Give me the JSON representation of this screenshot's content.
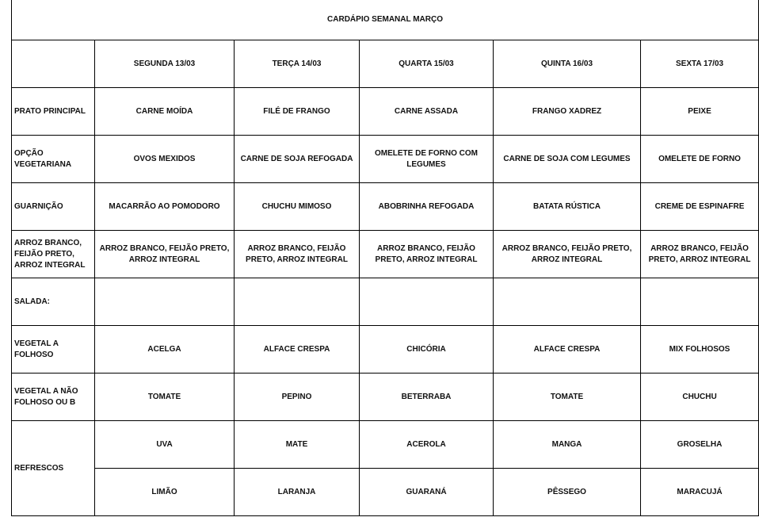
{
  "title": "CARDÁPIO SEMANAL MARÇO",
  "days": [
    "SEGUNDA 13/03",
    "TERÇA 14/03",
    "QUARTA 15/03",
    "QUINTA  16/03",
    "SEXTA 17/03"
  ],
  "rows": [
    {
      "label": "PRATO PRINCIPAL",
      "cells": [
        "CARNE MOÍDA",
        "FILÉ DE FRANGO",
        "CARNE ASSADA",
        "FRANGO XADREZ",
        "PEIXE"
      ]
    },
    {
      "label": "OPÇÃO VEGETARIANA",
      "cells": [
        "OVOS MEXIDOS",
        "CARNE DE SOJA REFOGADA",
        "OMELETE DE FORNO COM LEGUMES",
        "CARNE DE SOJA COM LEGUMES",
        "OMELETE DE FORNO"
      ]
    },
    {
      "label": "GUARNIÇÃO",
      "cells": [
        "MACARRÃO AO POMODORO",
        "CHUCHU MIMOSO",
        "ABOBRINHA REFOGADA",
        "BATATA RÚSTICA",
        "CREME DE ESPINAFRE"
      ]
    },
    {
      "label": "ARROZ BRANCO, FEIJÃO PRETO, ARROZ INTEGRAL",
      "cells": [
        "ARROZ BRANCO, FEIJÃO PRETO, ARROZ INTEGRAL",
        "ARROZ BRANCO, FEIJÃO PRETO, ARROZ INTEGRAL",
        "ARROZ BRANCO, FEIJÃO PRETO, ARROZ INTEGRAL",
        "ARROZ BRANCO, FEIJÃO PRETO, ARROZ INTEGRAL",
        "ARROZ BRANCO, FEIJÃO PRETO, ARROZ INTEGRAL"
      ]
    },
    {
      "label": "SALADA:",
      "cells": [
        "",
        "",
        "",
        "",
        ""
      ]
    },
    {
      "label": "VEGETAL A FOLHOSO",
      "cells": [
        "ACELGA",
        "ALFACE CRESPA",
        "CHICÓRIA",
        "ALFACE CRESPA",
        "MIX FOLHOSOS"
      ]
    },
    {
      "label": "VEGETAL A NÃO FOLHOSO OU B",
      "cells": [
        "TOMATE",
        "PEPINO",
        "BETERRABA",
        "TOMATE",
        "CHUCHU"
      ]
    }
  ],
  "refrescos": {
    "label": "REFRESCOS",
    "row1": [
      "UVA",
      "MATE",
      "ACEROLA",
      "MANGA",
      "GROSELHA"
    ],
    "row2": [
      "LIMÃO",
      "LARANJA",
      "GUARANÁ",
      "PÊSSEGO",
      "MARACUJÁ"
    ]
  }
}
